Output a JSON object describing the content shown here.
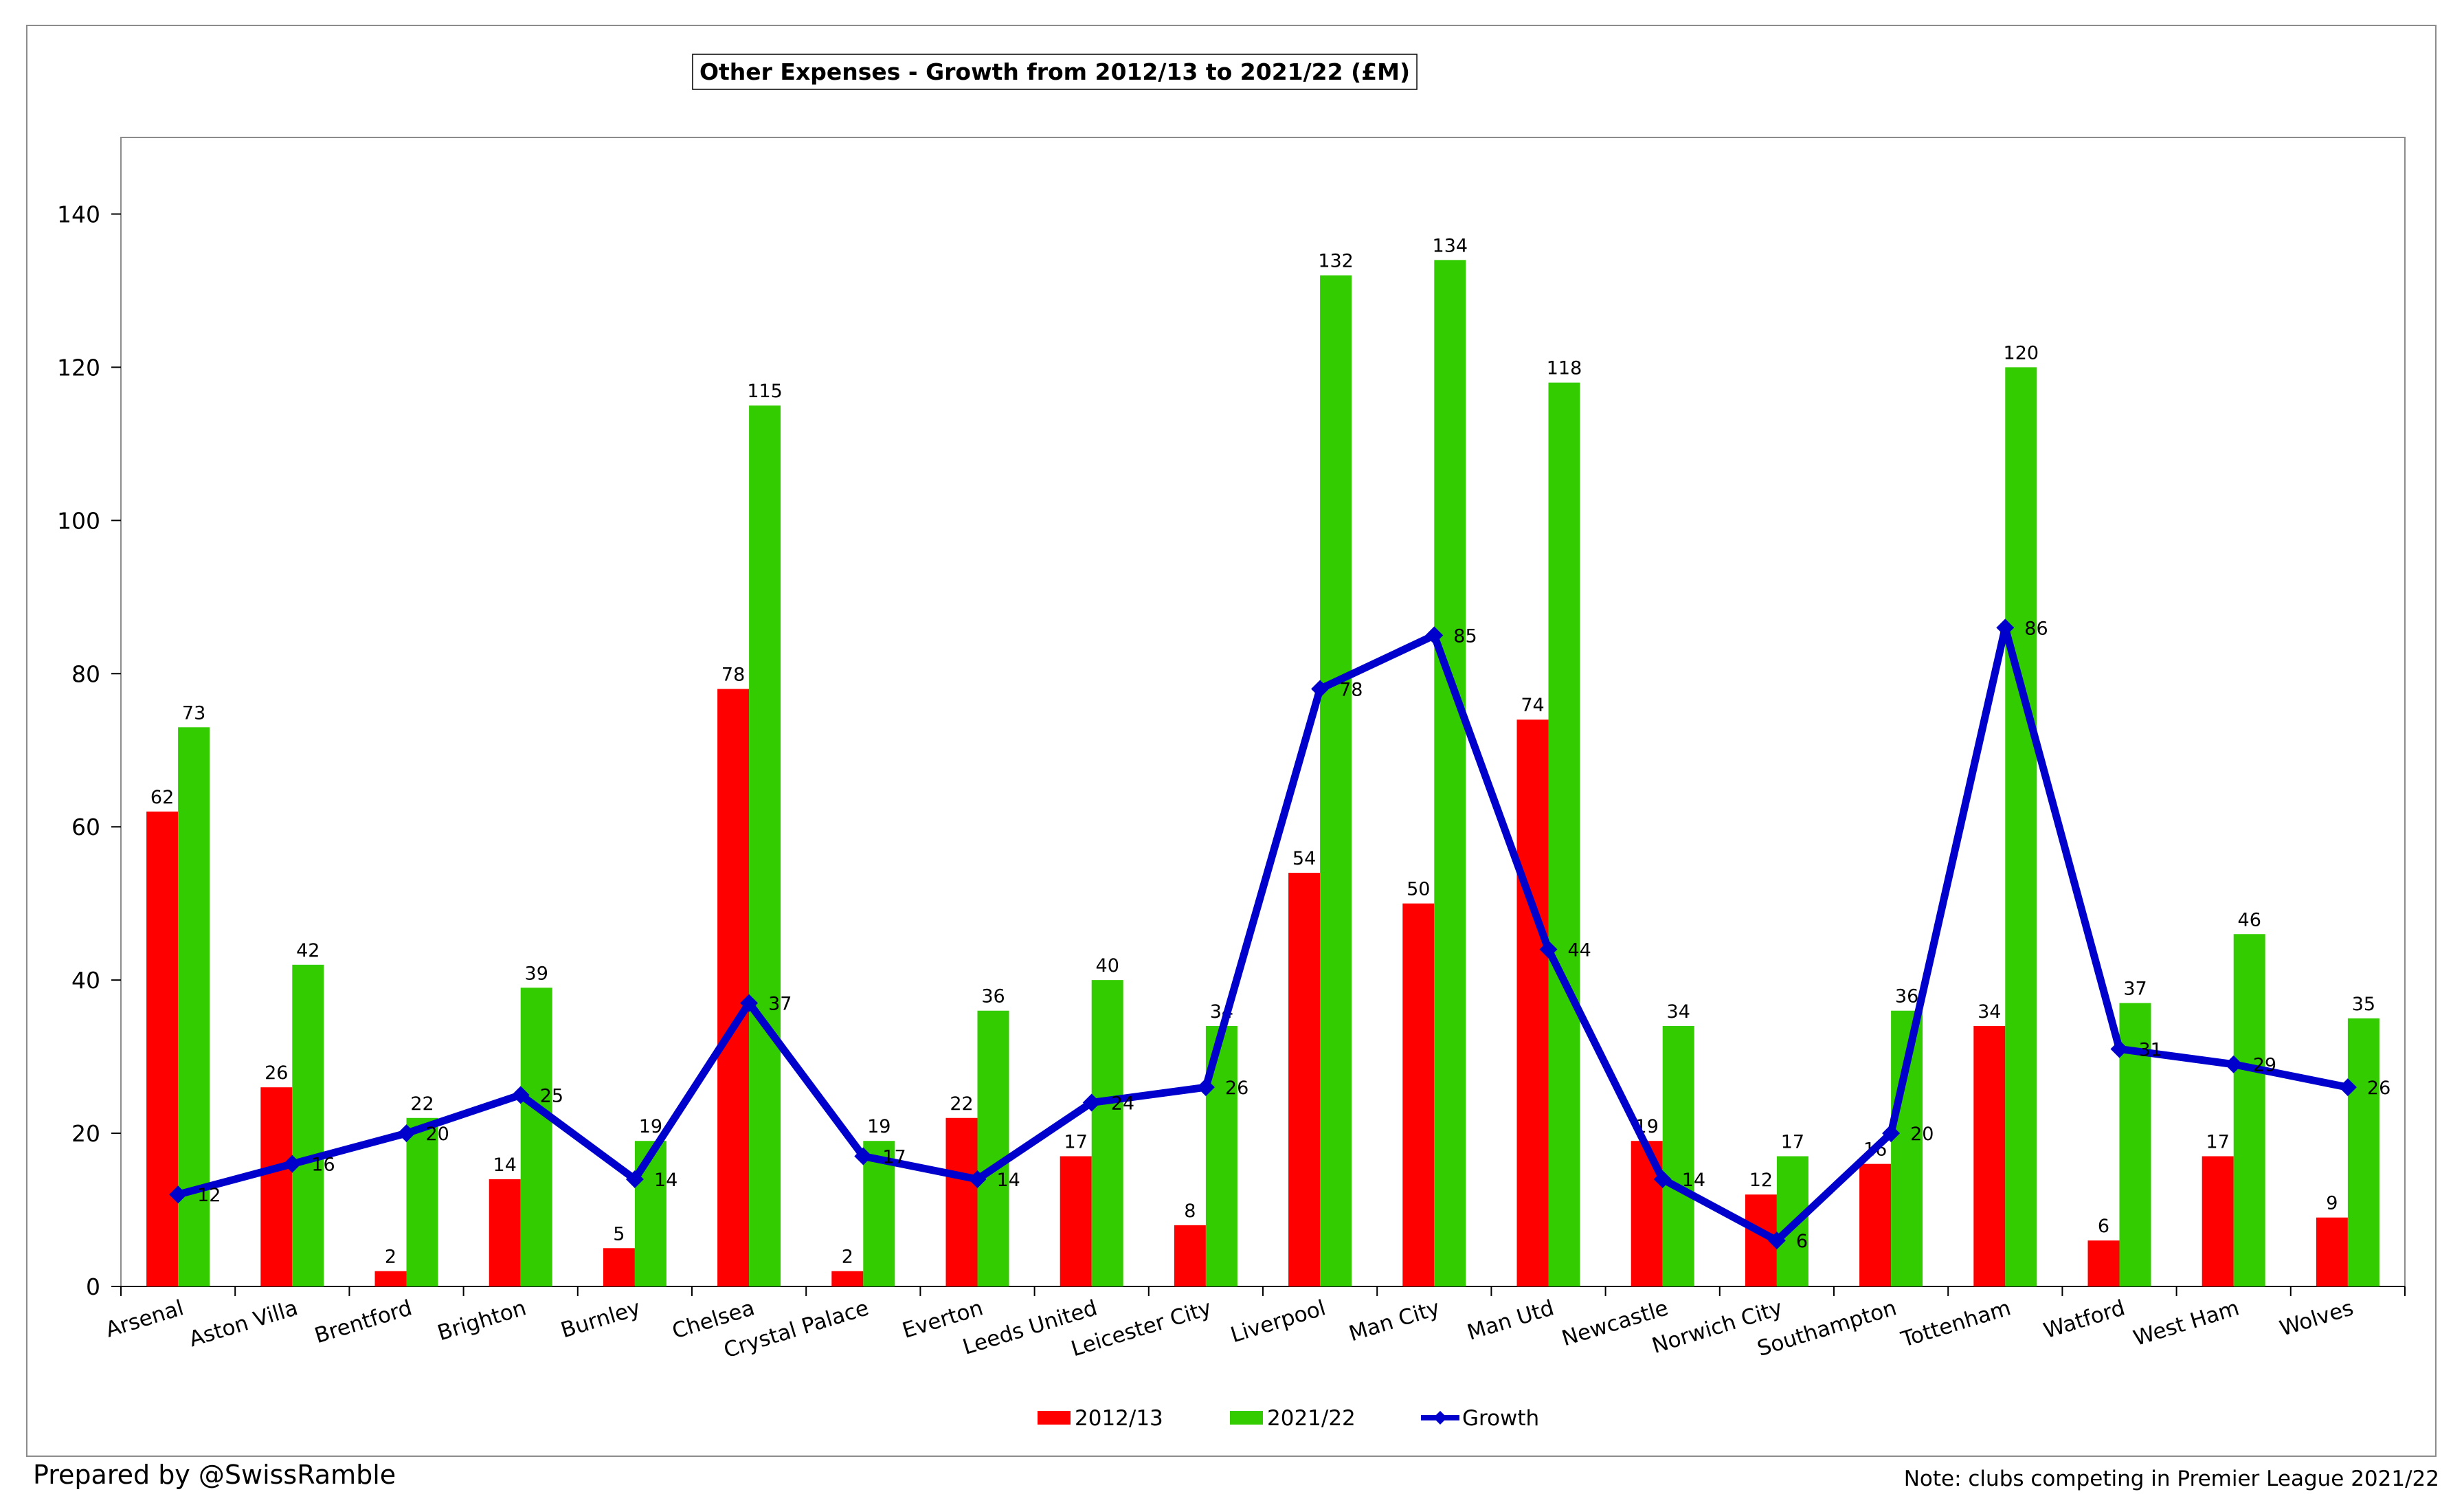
{
  "chart_data": {
    "type": "bar",
    "title": "Other Expenses - Growth from 2012/13 to 2021/22 (£M)",
    "xlabel": "",
    "ylabel": "",
    "ylim": [
      0,
      150
    ],
    "yticks": [
      0,
      20,
      40,
      60,
      80,
      100,
      120,
      140
    ],
    "grid": false,
    "legend_position": "bottom",
    "categories": [
      "Arsenal",
      "Aston Villa",
      "Brentford",
      "Brighton",
      "Burnley",
      "Chelsea",
      "Crystal Palace",
      "Everton",
      "Leeds United",
      "Leicester City",
      "Liverpool",
      "Man City",
      "Man Utd",
      "Newcastle",
      "Norwich City",
      "Southampton",
      "Tottenham",
      "Watford",
      "West Ham",
      "Wolves"
    ],
    "series": [
      {
        "name": "2012/13",
        "kind": "bar",
        "color": "#ff0000",
        "values": [
          62,
          26,
          2,
          14,
          5,
          78,
          2,
          22,
          17,
          8,
          54,
          50,
          74,
          19,
          12,
          16,
          34,
          6,
          17,
          9
        ]
      },
      {
        "name": "2021/22",
        "kind": "bar",
        "color": "#33cc00",
        "values": [
          73,
          42,
          22,
          39,
          19,
          115,
          19,
          36,
          40,
          34,
          132,
          134,
          118,
          34,
          17,
          36,
          120,
          37,
          46,
          35
        ]
      },
      {
        "name": "Growth",
        "kind": "line",
        "color": "#0000cc",
        "values": [
          12,
          16,
          20,
          25,
          14,
          37,
          17,
          14,
          24,
          26,
          78,
          85,
          44,
          14,
          6,
          20,
          86,
          31,
          29,
          26
        ]
      }
    ]
  },
  "footer": {
    "left": "Prepared by @SwissRamble",
    "right": "Note: clubs competing in Premier League 2021/22"
  }
}
